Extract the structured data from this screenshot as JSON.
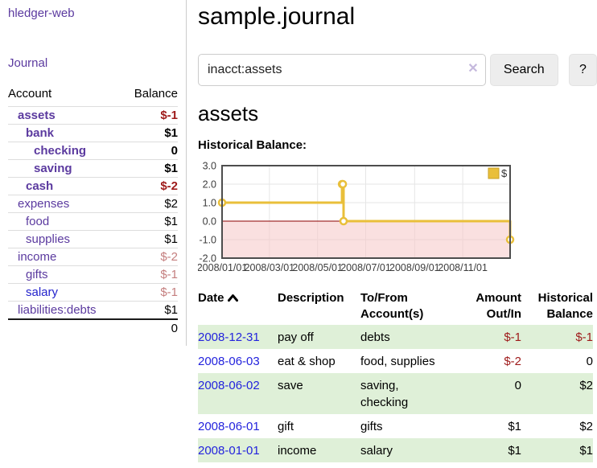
{
  "colors": {
    "link_purple": "#5b3a9f",
    "link_blue": "#2323cc",
    "negative_strong": "#9e1a1a",
    "negative_muted": "#c47e7e",
    "row_highlight_green": "#dff0d8",
    "chart_series_yellow": "#e9bf3a",
    "chart_negative_pink": "#f6c6c6",
    "chart_zero_line": "#8b0000"
  },
  "sidebar": {
    "app_title": "hledger-web",
    "journal_link": "Journal",
    "table": {
      "headers": [
        "Account",
        "Balance"
      ],
      "rows": [
        {
          "name": "assets",
          "balance": "$-1",
          "level": 1,
          "bold": true,
          "balance_style": "neg-strong",
          "link_color": "purple"
        },
        {
          "name": "bank",
          "balance": "$1",
          "level": 2,
          "bold": true,
          "balance_style": "pos",
          "link_color": "purple"
        },
        {
          "name": "checking",
          "balance": "0",
          "level": 3,
          "bold": true,
          "balance_style": "pos",
          "link_color": "purple"
        },
        {
          "name": "saving",
          "balance": "$1",
          "level": 3,
          "bold": true,
          "balance_style": "pos",
          "link_color": "purple"
        },
        {
          "name": "cash",
          "balance": "$-2",
          "level": 2,
          "bold": true,
          "balance_style": "neg-strong",
          "link_color": "purple"
        },
        {
          "name": "expenses",
          "balance": "$2",
          "level": 1,
          "bold": false,
          "balance_style": "pos",
          "link_color": "purple"
        },
        {
          "name": "food",
          "balance": "$1",
          "level": 2,
          "bold": false,
          "balance_style": "pos",
          "link_color": "purple"
        },
        {
          "name": "supplies",
          "balance": "$1",
          "level": 2,
          "bold": false,
          "balance_style": "pos",
          "link_color": "purple"
        },
        {
          "name": "income",
          "balance": "$-2",
          "level": 1,
          "bold": false,
          "balance_style": "neg-muted",
          "link_color": "purple"
        },
        {
          "name": "gifts",
          "balance": "$-1",
          "level": 2,
          "bold": false,
          "balance_style": "neg-muted",
          "link_color": "purple"
        },
        {
          "name": "salary",
          "balance": "$-1",
          "level": 2,
          "bold": false,
          "balance_style": "neg-muted",
          "link_color": "blue"
        },
        {
          "name": "liabilities:debts",
          "balance": "$1",
          "level": 1,
          "bold": false,
          "balance_style": "pos",
          "link_color": "purple"
        }
      ],
      "total": "0"
    }
  },
  "main": {
    "title": "sample.journal",
    "account_heading": "assets",
    "chart_label": "Historical Balance:"
  },
  "search": {
    "value": "inacct:assets",
    "clear_icon": "✕",
    "search_button": "Search",
    "help_button": "?"
  },
  "chart_data": {
    "type": "line",
    "step": true,
    "title": "Historical Balance",
    "xlim": [
      "2008-01-01",
      "2008-12-31"
    ],
    "ylim": [
      -2,
      3
    ],
    "y_ticks": [
      3.0,
      2.0,
      1.0,
      0.0,
      -1.0,
      -2.0
    ],
    "x_ticks": [
      "2008/01/01",
      "2008/03/01",
      "2008/05/01",
      "2008/07/01",
      "2008/09/01",
      "2008/11/01"
    ],
    "grid": true,
    "legend_position": "top-right",
    "series": [
      {
        "name": "$",
        "color": "#e9bf3a",
        "points": [
          [
            "2008-01-01",
            1
          ],
          [
            "2008-06-01",
            2
          ],
          [
            "2008-06-02",
            2
          ],
          [
            "2008-06-03",
            0
          ],
          [
            "2008-12-31",
            -1
          ]
        ]
      }
    ],
    "negative_fill": "#f6c6c6",
    "zero_line_color": "#8b0000"
  },
  "register": {
    "headers": [
      {
        "lines": [
          "Date"
        ],
        "align": "left",
        "sorted_asc": true
      },
      {
        "lines": [
          "Description"
        ],
        "align": "left"
      },
      {
        "lines": [
          "To/From",
          "Account(s)"
        ],
        "align": "left"
      },
      {
        "lines": [
          "Amount",
          "Out/In"
        ],
        "align": "right"
      },
      {
        "lines": [
          "Historical",
          "Balance"
        ],
        "align": "right"
      }
    ],
    "rows": [
      {
        "date": "2008-12-31",
        "description": "pay off",
        "accounts": "debts",
        "amount": "$-1",
        "amount_neg": true,
        "balance": "$-1",
        "balance_neg": true
      },
      {
        "date": "2008-06-03",
        "description": "eat & shop",
        "accounts": "food, supplies",
        "amount": "$-2",
        "amount_neg": true,
        "balance": "0",
        "balance_neg": false
      },
      {
        "date": "2008-06-02",
        "description": "save",
        "accounts": "saving, checking",
        "amount": "0",
        "amount_neg": false,
        "balance": "$2",
        "balance_neg": false
      },
      {
        "date": "2008-06-01",
        "description": "gift",
        "accounts": "gifts",
        "amount": "$1",
        "amount_neg": false,
        "balance": "$2",
        "balance_neg": false
      },
      {
        "date": "2008-01-01",
        "description": "income",
        "accounts": "salary",
        "amount": "$1",
        "amount_neg": false,
        "balance": "$1",
        "balance_neg": false
      }
    ]
  }
}
